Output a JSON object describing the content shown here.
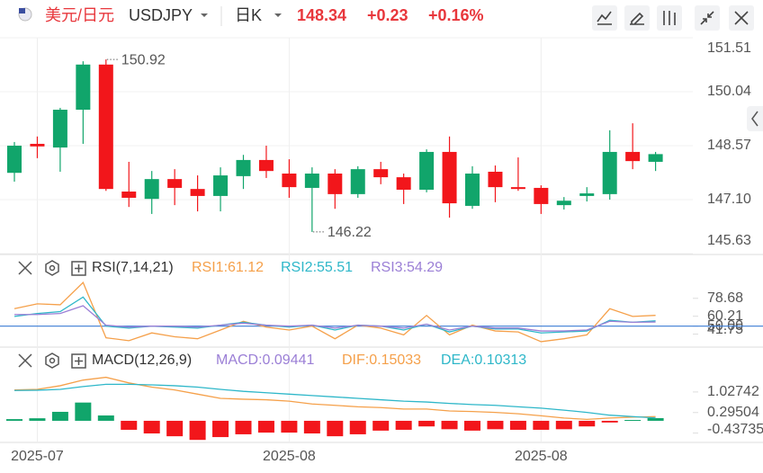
{
  "header": {
    "pair": "美元/日元",
    "symbol": "USDJPY",
    "period": "日K",
    "price": "148.34",
    "change": "+0.23",
    "change_pct": "+0.16%"
  },
  "chart_data": [
    {
      "type": "candlestick",
      "categories": [
        null,
        "2025-07",
        null,
        null,
        null,
        null,
        null,
        null,
        null,
        null,
        null,
        null,
        "2025-08",
        null,
        null,
        null,
        null,
        null,
        null,
        null,
        null,
        null,
        null,
        "2025-08",
        null,
        null,
        null,
        null,
        null
      ],
      "open": [
        147.83,
        148.62,
        148.52,
        149.55,
        150.78,
        147.32,
        147.12,
        147.66,
        147.39,
        147.2,
        147.74,
        148.18,
        147.81,
        147.42,
        147.81,
        147.25,
        147.93,
        147.71,
        147.37,
        148.4,
        146.93,
        147.86,
        147.44,
        147.42,
        146.95,
        147.2,
        147.25,
        148.4,
        148.13
      ],
      "high": [
        148.67,
        148.82,
        149.6,
        150.87,
        150.92,
        148.13,
        147.88,
        147.93,
        147.76,
        147.98,
        148.32,
        148.57,
        148.2,
        147.98,
        147.93,
        148.01,
        148.13,
        147.81,
        148.47,
        148.82,
        148.01,
        148.03,
        148.25,
        147.49,
        147.17,
        147.44,
        148.99,
        149.18,
        148.4
      ],
      "low": [
        147.59,
        148.23,
        147.86,
        148.62,
        147.34,
        146.9,
        146.71,
        146.95,
        146.78,
        146.78,
        147.39,
        147.69,
        147.15,
        146.22,
        146.85,
        147.15,
        147.52,
        146.98,
        147.3,
        146.61,
        146.85,
        147.03,
        147.34,
        146.71,
        146.83,
        147.05,
        147.1,
        147.93,
        147.88
      ],
      "close": [
        148.57,
        148.55,
        149.55,
        150.78,
        147.39,
        147.15,
        147.66,
        147.42,
        147.2,
        147.76,
        148.18,
        147.88,
        147.44,
        147.81,
        147.25,
        147.93,
        147.71,
        147.37,
        148.4,
        147.0,
        147.81,
        147.44,
        147.39,
        146.98,
        147.07,
        147.27,
        148.4,
        148.15,
        148.34
      ],
      "up_color": "#11a56b",
      "down_color": "#f2161b",
      "ylim": [
        145.63,
        151.51
      ],
      "yticks": [
        151.51,
        150.04,
        148.57,
        {
          "value": 147.1,
          "label": "147.10"
        },
        145.63
      ],
      "annotations": [
        150.92,
        146.22
      ],
      "grid": true
    },
    {
      "type": "line",
      "title": "RSI(7,14,21)",
      "series": [
        {
          "name": "RSI1:61.12",
          "color": "#f5a04a",
          "values": [
            68,
            73,
            72,
            95,
            38,
            35,
            43,
            39,
            37,
            46,
            55,
            49,
            46,
            50,
            37,
            51,
            48,
            41,
            61,
            41,
            51,
            45,
            44,
            34,
            37,
            41,
            68,
            60,
            61.12
          ]
        },
        {
          "name": "RSI2:55.51",
          "color": "#2eb7c9",
          "values": [
            60,
            63,
            65,
            80,
            50,
            48,
            50,
            49,
            48,
            51,
            54,
            51,
            49,
            51,
            46,
            51,
            50,
            46,
            52,
            44,
            50,
            47,
            47,
            43,
            44,
            45,
            56,
            54,
            55.51
          ]
        },
        {
          "name": "RSI3:54.29",
          "color": "#9b7fd6",
          "values": [
            62,
            62,
            63,
            71,
            51,
            49,
            50,
            50,
            49,
            51,
            53,
            51,
            50,
            51,
            48,
            51,
            50,
            48,
            52,
            46,
            50,
            48,
            48,
            45,
            45,
            46,
            55,
            54,
            54.29
          ]
        }
      ],
      "ylim": [
        33,
        97
      ],
      "yticks": [
        78.68,
        60.21,
        {
          "value": 50,
          "label": "50.00"
        },
        41.75
      ],
      "reference_line": 50,
      "grid": false
    },
    {
      "type": "macd",
      "title": "MACD(12,26,9)",
      "series": [
        {
          "name": "MACD:0.09441",
          "type": "bar",
          "color": "#9b7fd6",
          "up_color": "#11a56b",
          "down_color": "#f2161b",
          "values": [
            0.06,
            0.09,
            0.32,
            0.65,
            0.19,
            -0.32,
            -0.45,
            -0.55,
            -0.68,
            -0.58,
            -0.48,
            -0.42,
            -0.42,
            -0.45,
            -0.55,
            -0.48,
            -0.35,
            -0.32,
            -0.2,
            -0.3,
            -0.35,
            -0.3,
            -0.32,
            -0.32,
            -0.3,
            -0.2,
            -0.06,
            0.03,
            0.09441
          ]
        },
        {
          "name": "DIF:0.15033",
          "type": "line",
          "color": "#f5a04a",
          "values": [
            1.1,
            1.12,
            1.25,
            1.45,
            1.55,
            1.35,
            1.2,
            1.1,
            0.95,
            0.8,
            0.77,
            0.75,
            0.7,
            0.6,
            0.55,
            0.5,
            0.47,
            0.42,
            0.42,
            0.35,
            0.33,
            0.3,
            0.25,
            0.18,
            0.1,
            0.05,
            0.1,
            0.13,
            0.15033
          ]
        },
        {
          "name": "DEA:0.10313",
          "type": "line",
          "color": "#2eb7c9",
          "values": [
            1.08,
            1.09,
            1.12,
            1.22,
            1.3,
            1.3,
            1.28,
            1.25,
            1.2,
            1.12,
            1.05,
            1.0,
            0.95,
            0.9,
            0.85,
            0.8,
            0.75,
            0.7,
            0.67,
            0.62,
            0.58,
            0.55,
            0.5,
            0.45,
            0.38,
            0.3,
            0.2,
            0.15,
            0.10313
          ]
        }
      ],
      "ylim": [
        -0.77,
        1.6
      ],
      "yticks": [
        1.02742,
        0.29504,
        -0.43735
      ],
      "grid": false
    }
  ]
}
